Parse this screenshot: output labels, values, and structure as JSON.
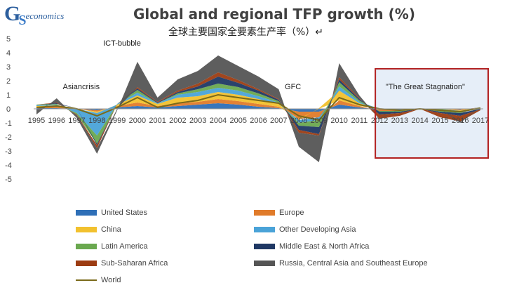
{
  "logo": {
    "mark": "GS",
    "word": "economics"
  },
  "title": "Global and regional TFP growth (%)",
  "subtitle": "全球主要国家全要素生产率（%）↵",
  "chart_data": {
    "type": "area",
    "title": "Global and regional TFP growth (%)",
    "x": [
      "1995",
      "1996",
      "1997",
      "1998",
      "1999",
      "2000",
      "2001",
      "2002",
      "2003",
      "2004",
      "2005",
      "2006",
      "2007",
      "2008",
      "2009",
      "2010",
      "2011",
      "2012",
      "2013",
      "2014",
      "2015",
      "2016",
      "2017"
    ],
    "ylim": [
      -5,
      5
    ],
    "yticks": [
      5,
      4,
      3,
      2,
      1,
      0,
      -1,
      -2,
      -3,
      -4,
      -5
    ],
    "grid": false,
    "annotations": [
      {
        "text": "Asiancrisis",
        "x": "1997",
        "y": 1.4
      },
      {
        "text": "ICT-bubble",
        "x": "1999",
        "y": 4.5
      },
      {
        "text": "GFC",
        "x": "2008",
        "y": 1.4
      },
      {
        "text": "\"The Great Stagnation\"",
        "x": "2013",
        "y": 1.4
      }
    ],
    "highlight": {
      "from": "2012",
      "to": "2017"
    },
    "series": [
      {
        "name": "United States",
        "color": "#2e6fb7",
        "values": [
          0.05,
          0.05,
          0.0,
          -0.1,
          0.1,
          0.2,
          0.1,
          0.2,
          0.3,
          0.4,
          0.3,
          0.15,
          0.05,
          -0.2,
          -0.2,
          0.3,
          0.1,
          -0.05,
          -0.05,
          0.0,
          0.0,
          -0.05,
          0.1
        ]
      },
      {
        "name": "Europe",
        "color": "#e07b2a",
        "values": [
          0.05,
          0.1,
          0.0,
          -0.1,
          0.1,
          0.25,
          0.1,
          0.2,
          0.2,
          0.3,
          0.25,
          0.2,
          0.1,
          -0.5,
          -0.4,
          0.3,
          0.1,
          -0.1,
          -0.1,
          0.0,
          0.0,
          -0.05,
          0.0
        ]
      },
      {
        "name": "China",
        "color": "#f2c12e",
        "values": [
          0.1,
          0.1,
          0.05,
          -0.1,
          0.1,
          0.5,
          0.15,
          0.4,
          0.4,
          0.5,
          0.45,
          0.35,
          0.2,
          -0.1,
          0.05,
          0.7,
          0.2,
          0.0,
          0.0,
          0.0,
          0.0,
          -0.05,
          0.0
        ]
      },
      {
        "name": "Other Developing Asia",
        "color": "#4aa3d8",
        "values": [
          0.05,
          0.05,
          -0.3,
          -1.6,
          0.05,
          0.2,
          0.05,
          0.2,
          0.3,
          0.3,
          0.3,
          0.2,
          0.1,
          -0.2,
          -0.2,
          0.3,
          0.1,
          0.0,
          0.0,
          0.0,
          0.0,
          -0.05,
          0.0
        ]
      },
      {
        "name": "Latin America",
        "color": "#6aa84f",
        "values": [
          0.05,
          0.05,
          -0.1,
          -0.6,
          0.0,
          0.2,
          0.0,
          0.1,
          0.2,
          0.3,
          0.25,
          0.2,
          0.1,
          -0.2,
          -0.5,
          0.3,
          0.1,
          -0.05,
          -0.05,
          0.0,
          -0.2,
          -0.1,
          0.0
        ]
      },
      {
        "name": "Middle East & North Africa",
        "color": "#1f3864",
        "values": [
          0.0,
          0.05,
          0.0,
          -0.1,
          0.0,
          0.1,
          0.05,
          0.1,
          0.2,
          0.5,
          0.3,
          0.2,
          0.1,
          -0.3,
          -0.5,
          0.2,
          0.1,
          -0.2,
          -0.1,
          0.0,
          -0.1,
          -0.2,
          -0.05
        ]
      },
      {
        "name": "Sub-Saharan Africa",
        "color": "#9c3c12",
        "values": [
          0.0,
          0.05,
          -0.05,
          -0.2,
          0.0,
          0.1,
          0.05,
          0.1,
          0.2,
          0.3,
          0.2,
          0.1,
          0.05,
          -0.2,
          -0.1,
          0.15,
          0.05,
          -0.3,
          -0.2,
          0.0,
          -0.3,
          -0.4,
          -0.05
        ]
      },
      {
        "name": "Russia, Central Asia and Southeast Europe",
        "color": "#555555",
        "values": [
          -0.4,
          0.3,
          -0.2,
          -0.4,
          -0.1,
          1.8,
          0.3,
          0.8,
          0.9,
          1.2,
          1.0,
          0.9,
          0.7,
          -1.0,
          -1.9,
          1.0,
          0.2,
          -0.05,
          0.0,
          0.0,
          0.0,
          -0.1,
          0.0
        ]
      },
      {
        "name": "World",
        "color": "#7a6a1a",
        "values": [
          0.1,
          0.2,
          0.0,
          -0.5,
          0.1,
          0.8,
          0.1,
          0.4,
          0.6,
          1.0,
          0.8,
          0.6,
          0.4,
          -0.5,
          -0.8,
          0.8,
          0.3,
          0.0,
          -0.1,
          0.0,
          -0.1,
          -0.2,
          0.05
        ]
      }
    ]
  },
  "legend": [
    {
      "name": "United States",
      "kind": "area",
      "color": "#2e6fb7"
    },
    {
      "name": "Europe",
      "kind": "area",
      "color": "#e07b2a"
    },
    {
      "name": "China",
      "kind": "area",
      "color": "#f2c12e"
    },
    {
      "name": "Other Developing Asia",
      "kind": "area",
      "color": "#4aa3d8"
    },
    {
      "name": "Latin America",
      "kind": "area",
      "color": "#6aa84f"
    },
    {
      "name": "Middle East & North Africa",
      "kind": "area",
      "color": "#1f3864"
    },
    {
      "name": "Sub-Saharan Africa",
      "kind": "area",
      "color": "#9c3c12"
    },
    {
      "name": "Russia, Central Asia and Southeast Europe",
      "kind": "area",
      "color": "#555555"
    },
    {
      "name": "World",
      "kind": "line",
      "color": "#7a6a1a"
    }
  ]
}
